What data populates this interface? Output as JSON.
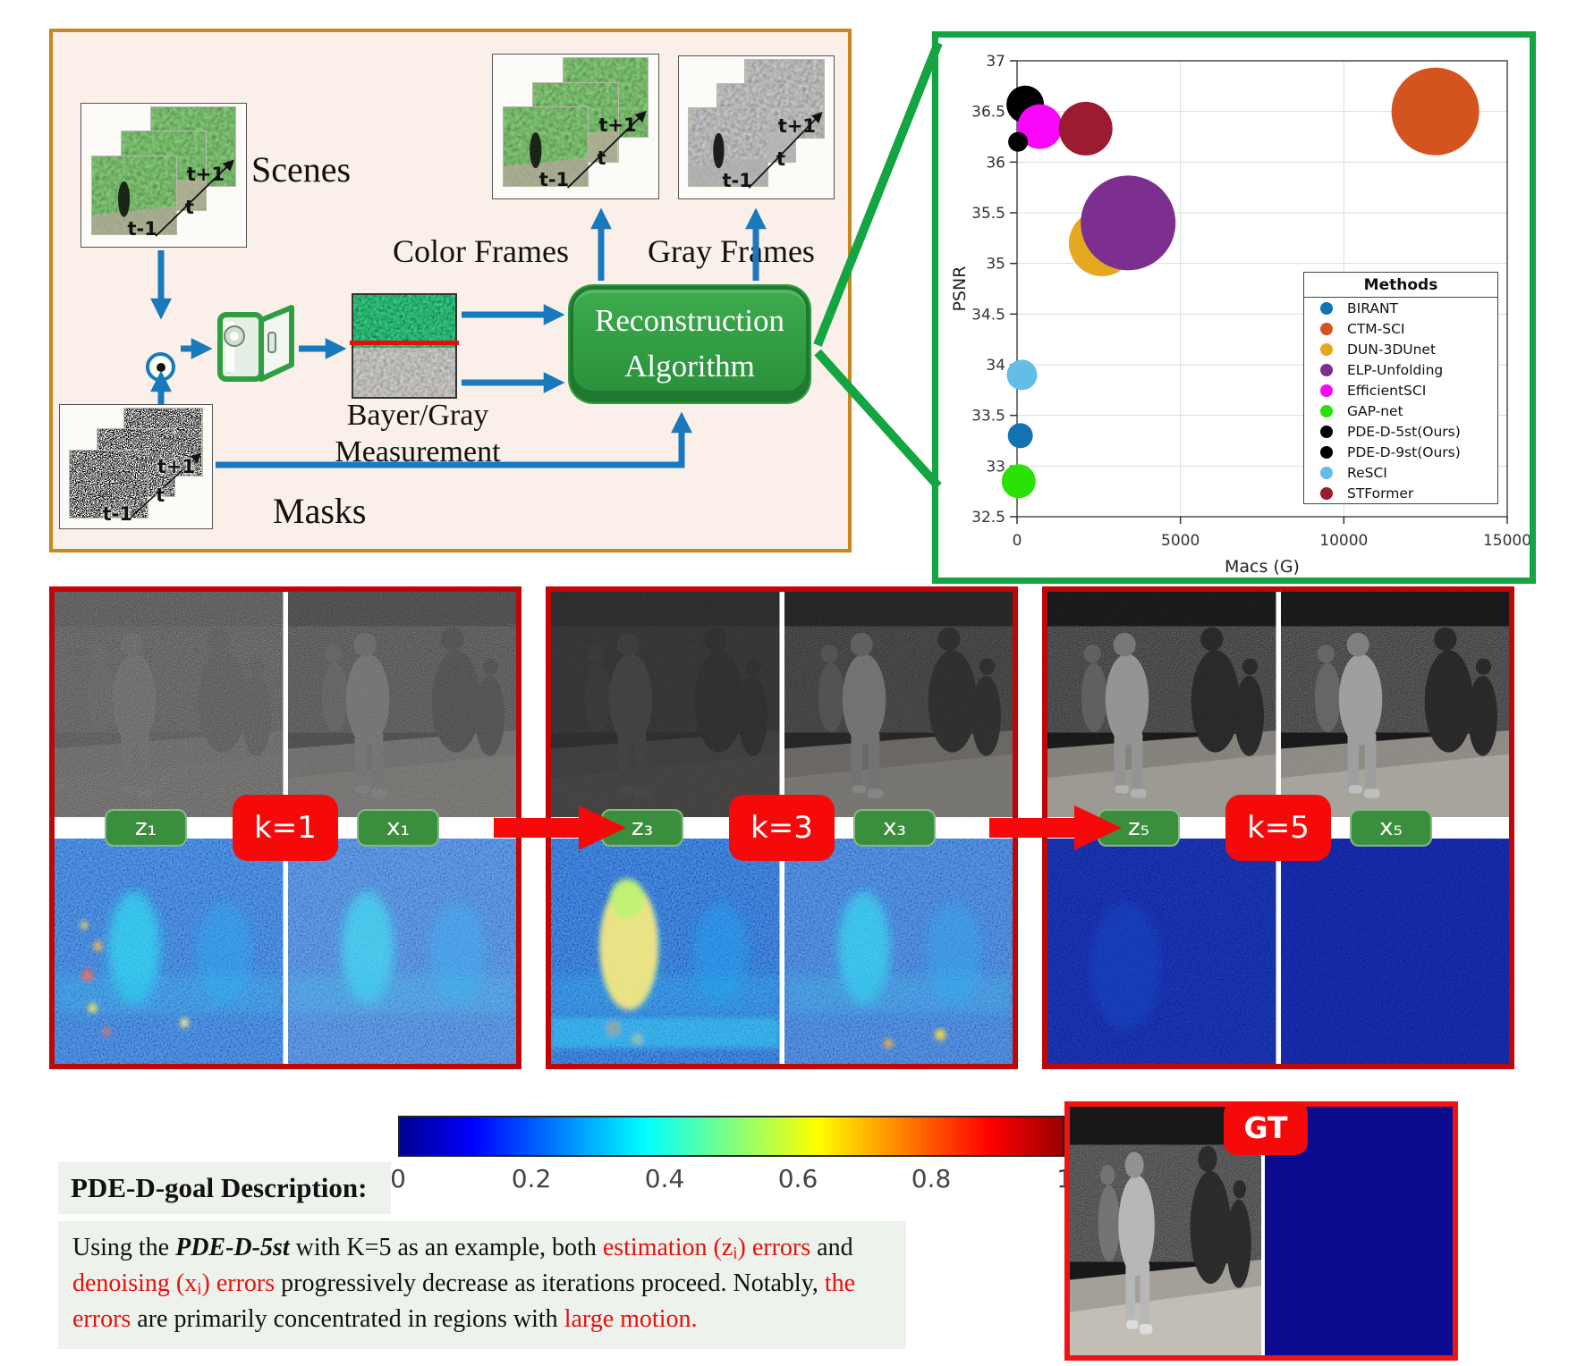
{
  "diagram": {
    "scenes_label": "Scenes",
    "masks_label": "Masks",
    "measurement_label_line1": "Bayer/Gray",
    "measurement_label_line2": "Measurement",
    "recon_line1": "Reconstruction",
    "recon_line2": "Algorithm",
    "color_frames_label": "Color Frames",
    "gray_frames_label": "Gray Frames",
    "time_labels": [
      "t-1",
      "t",
      "t+1"
    ],
    "colors": {
      "panel_border": "#c8861e",
      "panel_bg": "#faf0e9",
      "arrow_blue": "#1879bd",
      "recon_green": "#2e9e3f",
      "bracket_green": "#12a541"
    }
  },
  "chart_data": {
    "type": "scatter",
    "title": "",
    "xlabel": "Macs (G)",
    "ylabel": "PSNR",
    "xlim": [
      0,
      15000
    ],
    "ylim": [
      32.5,
      37
    ],
    "xticks": [
      0,
      5000,
      10000,
      15000
    ],
    "yticks": [
      32.5,
      33,
      33.5,
      34,
      34.5,
      35,
      35.5,
      36,
      36.5,
      37
    ],
    "grid": true,
    "legend_title": "Methods",
    "legend_position": "lower right",
    "size_note": "size = bubble radius in px",
    "series": [
      {
        "name": "BIRANT",
        "color": "#1273b4",
        "x": 100,
        "y": 33.3,
        "size": 14
      },
      {
        "name": "CTM-SCI",
        "color": "#d4541e",
        "x": 12800,
        "y": 36.5,
        "size": 49
      },
      {
        "name": "DUN-3DUnet",
        "color": "#e3a820",
        "x": 2600,
        "y": 35.2,
        "size": 37
      },
      {
        "name": "ELP-Unfolding",
        "color": "#7c2f8f",
        "x": 3400,
        "y": 35.4,
        "size": 53
      },
      {
        "name": "EfficientSCI",
        "color": "#f806f8",
        "x": 700,
        "y": 36.35,
        "size": 25
      },
      {
        "name": "GAP-net",
        "color": "#2ae205",
        "x": 50,
        "y": 32.85,
        "size": 19
      },
      {
        "name": "PDE-D-5st(Ours)",
        "color": "#000000",
        "x": 30,
        "y": 36.2,
        "size": 11
      },
      {
        "name": "PDE-D-9st(Ours)",
        "color": "#000000",
        "x": 250,
        "y": 36.57,
        "size": 21
      },
      {
        "name": "ReSCI",
        "color": "#62bde9",
        "x": 150,
        "y": 33.9,
        "size": 17
      },
      {
        "name": "STFormer",
        "color": "#9b1c30",
        "x": 2100,
        "y": 36.33,
        "size": 30
      }
    ],
    "draw_order": [
      "CTM-SCI",
      "ReSCI",
      "BIRANT",
      "GAP-net",
      "DUN-3DUnet",
      "ELP-Unfolding",
      "PDE-D-9st(Ours)",
      "EfficientSCI",
      "STFormer",
      "PDE-D-5st(Ours)"
    ]
  },
  "iterations": [
    {
      "z_label": "z₁",
      "k_label": "k=1",
      "x_label": "x₁"
    },
    {
      "z_label": "z₃",
      "k_label": "k=3",
      "x_label": "x₃"
    },
    {
      "z_label": "z₅",
      "k_label": "k=5",
      "x_label": "x₅"
    }
  ],
  "colorbar": {
    "ticks": [
      "0",
      "0.2",
      "0.4",
      "0.6",
      "0.8",
      "1"
    ]
  },
  "description": {
    "heading": "PDE-D-goal Description:",
    "segments": [
      {
        "text": "Using the ",
        "style": "normal"
      },
      {
        "text": "PDE-D-5st",
        "style": "bold-italic"
      },
      {
        "text": " with K=5 as an example, both ",
        "style": "normal"
      },
      {
        "text": "estimation (z",
        "style": "red"
      },
      {
        "text": "i",
        "style": "red-sub"
      },
      {
        "text": ") errors",
        "style": "red"
      },
      {
        "text": " and ",
        "style": "normal"
      },
      {
        "text": "denoising (x",
        "style": "red"
      },
      {
        "text": "i",
        "style": "red-sub"
      },
      {
        "text": ") errors",
        "style": "red"
      },
      {
        "text": " progressively decrease as iterations proceed. Notably, ",
        "style": "normal"
      },
      {
        "text": "the errors",
        "style": "red"
      },
      {
        "text": " are primarily concentrated in regions with ",
        "style": "normal"
      },
      {
        "text": "large motion.",
        "style": "red"
      }
    ]
  },
  "gt_label": "GT"
}
